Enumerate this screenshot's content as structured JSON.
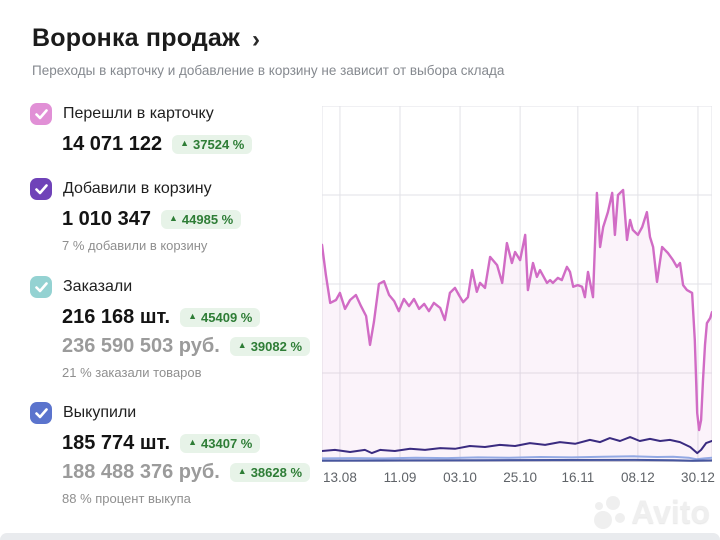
{
  "header": {
    "title": "Воронка продаж",
    "chevron": "›",
    "subtitle": "Переходы в карточку и добавление в корзину не зависит от выбора склада"
  },
  "metrics": [
    {
      "label": "Перешли в карточку",
      "checkbox_color": "#e190d6",
      "checked": true,
      "rows": [
        {
          "value": "14 071 122",
          "delta": "37524 %",
          "muted": false
        }
      ],
      "caption": null
    },
    {
      "label": "Добавили в корзину",
      "checkbox_color": "#6f42b8",
      "checked": true,
      "rows": [
        {
          "value": "1 010 347",
          "delta": "44985 %",
          "muted": false
        }
      ],
      "caption": "7 % добавили в корзину"
    },
    {
      "label": "Заказали",
      "checkbox_color": "#94d2d2",
      "checked": true,
      "rows": [
        {
          "value": "216 168 шт.",
          "delta": "45409 %",
          "muted": false
        },
        {
          "value": "236 590 503 руб.",
          "delta": "39082 %",
          "muted": true
        }
      ],
      "caption": "21 % заказали товаров"
    },
    {
      "label": "Выкупили",
      "checkbox_color": "#5b74cd",
      "checked": true,
      "rows": [
        {
          "value": "185 774 шт.",
          "delta": "43407 %",
          "muted": false
        },
        {
          "value": "188 488 376 руб.",
          "delta": "38628 %",
          "muted": true
        }
      ],
      "caption": "88 % процент выкупа"
    }
  ],
  "chart_data": {
    "type": "line",
    "grid": true,
    "x_axis": {
      "tick_labels": [
        "13.08",
        "11.09",
        "03.10",
        "25.10",
        "16.11",
        "08.12",
        "30.12"
      ],
      "tick_positions_pct": [
        4.6,
        20,
        35.4,
        50.8,
        65.6,
        81,
        96.4
      ]
    },
    "y_axis": {
      "visible": false,
      "note": "no y-axis tick labels shown; series values are percent of plot height above baseline"
    },
    "colors": {
      "grid": "#e2e2e7",
      "axis": "#c7cbd4"
    },
    "series": [
      {
        "name": "Перешли в карточку",
        "color": "#d16cc5",
        "width": 2.4,
        "fill": "rgba(210,108,197,0.08)",
        "points": [
          [
            0,
            61
          ],
          [
            1,
            52.5
          ],
          [
            2.1,
            44.7
          ],
          [
            3.6,
            45.5
          ],
          [
            4.6,
            47.5
          ],
          [
            5.9,
            43
          ],
          [
            7.2,
            45.5
          ],
          [
            8.7,
            46.9
          ],
          [
            10,
            43.8
          ],
          [
            11.3,
            41
          ],
          [
            12.3,
            32.9
          ],
          [
            13.3,
            39.3
          ],
          [
            14.6,
            50
          ],
          [
            15.9,
            50.8
          ],
          [
            17.2,
            46.9
          ],
          [
            18.5,
            45.2
          ],
          [
            19.7,
            42.4
          ],
          [
            21,
            45.8
          ],
          [
            22.3,
            43.8
          ],
          [
            23.6,
            45.8
          ],
          [
            24.9,
            43
          ],
          [
            26.2,
            44.4
          ],
          [
            27.4,
            42.4
          ],
          [
            28.7,
            44.7
          ],
          [
            30.3,
            43.3
          ],
          [
            31.5,
            39.9
          ],
          [
            32.8,
            47.5
          ],
          [
            34.1,
            48.9
          ],
          [
            35.1,
            46.9
          ],
          [
            36.2,
            44.9
          ],
          [
            37.4,
            46.3
          ],
          [
            38.5,
            53.9
          ],
          [
            39.7,
            47.8
          ],
          [
            40.5,
            50.3
          ],
          [
            41.8,
            48.9
          ],
          [
            43.1,
            57.6
          ],
          [
            44.9,
            55.3
          ],
          [
            46.2,
            50.3
          ],
          [
            47.4,
            61.5
          ],
          [
            48.7,
            55.9
          ],
          [
            49.5,
            59
          ],
          [
            50.8,
            56.7
          ],
          [
            52.1,
            63.8
          ],
          [
            52.8,
            48.3
          ],
          [
            54.1,
            55.9
          ],
          [
            55.1,
            52
          ],
          [
            55.9,
            53.9
          ],
          [
            57.7,
            50.3
          ],
          [
            58.5,
            51.1
          ],
          [
            59.2,
            50.3
          ],
          [
            60.5,
            51.7
          ],
          [
            61.5,
            51.1
          ],
          [
            62.8,
            54.8
          ],
          [
            63.6,
            53.4
          ],
          [
            64.4,
            49.2
          ],
          [
            65.6,
            49.7
          ],
          [
            66.7,
            49.2
          ],
          [
            67.4,
            46.3
          ],
          [
            68.2,
            53.4
          ],
          [
            69.5,
            46.3
          ],
          [
            70.5,
            75.6
          ],
          [
            71.3,
            60.4
          ],
          [
            72.1,
            66
          ],
          [
            73.3,
            70.2
          ],
          [
            74.4,
            75.6
          ],
          [
            75.1,
            63.8
          ],
          [
            75.9,
            75
          ],
          [
            77.2,
            76.4
          ],
          [
            78.2,
            62.4
          ],
          [
            79,
            68
          ],
          [
            79.7,
            65.2
          ],
          [
            81,
            63.8
          ],
          [
            82.1,
            66
          ],
          [
            83.3,
            70.2
          ],
          [
            84.1,
            63.2
          ],
          [
            84.9,
            60.4
          ],
          [
            85.9,
            50.6
          ],
          [
            87.2,
            60.4
          ],
          [
            87.9,
            59.6
          ],
          [
            88.7,
            58.7
          ],
          [
            90,
            56.7
          ],
          [
            91,
            54.8
          ],
          [
            91.8,
            55.9
          ],
          [
            92.6,
            49.7
          ],
          [
            93.6,
            48.3
          ],
          [
            94.9,
            47.5
          ],
          [
            95.6,
            34.3
          ],
          [
            96.2,
            13.8
          ],
          [
            96.7,
            9
          ],
          [
            97.2,
            11.8
          ],
          [
            97.7,
            23
          ],
          [
            98.2,
            32.9
          ],
          [
            98.7,
            39
          ],
          [
            99.5,
            40.4
          ],
          [
            100,
            42.1
          ]
        ]
      },
      {
        "name": "Добавили в корзину",
        "color": "#3a2b80",
        "width": 2,
        "fill": null,
        "points": [
          [
            0,
            3.1
          ],
          [
            3.3,
            3.4
          ],
          [
            7.2,
            2.8
          ],
          [
            11,
            3.4
          ],
          [
            12.8,
            2.5
          ],
          [
            14.9,
            3.4
          ],
          [
            18.7,
            3.1
          ],
          [
            22.6,
            3.7
          ],
          [
            26.4,
            3.4
          ],
          [
            30.3,
            3.9
          ],
          [
            34.1,
            3.7
          ],
          [
            37.9,
            4.5
          ],
          [
            41.8,
            4.2
          ],
          [
            45.6,
            4.8
          ],
          [
            49.5,
            4.5
          ],
          [
            53.3,
            5.3
          ],
          [
            57.2,
            4.8
          ],
          [
            61,
            5.6
          ],
          [
            64.9,
            5.1
          ],
          [
            68.7,
            6.2
          ],
          [
            71.3,
            5.6
          ],
          [
            73.8,
            6.7
          ],
          [
            76.4,
            5.9
          ],
          [
            79,
            7
          ],
          [
            81.5,
            5.9
          ],
          [
            84.1,
            6.5
          ],
          [
            86.7,
            5.9
          ],
          [
            89.2,
            6.2
          ],
          [
            91.8,
            5.6
          ],
          [
            94.4,
            4.2
          ],
          [
            96.2,
            2.5
          ],
          [
            97.2,
            3.4
          ],
          [
            98.5,
            5.3
          ],
          [
            100,
            5.9
          ]
        ]
      },
      {
        "name": "Заказали",
        "color": "#93a9e4",
        "width": 2,
        "fill": null,
        "points": [
          [
            0,
            1
          ],
          [
            8,
            1.1
          ],
          [
            16,
            1
          ],
          [
            24,
            1.2
          ],
          [
            32,
            1.1
          ],
          [
            40,
            1.3
          ],
          [
            48,
            1.2
          ],
          [
            56,
            1.4
          ],
          [
            64,
            1.3
          ],
          [
            72,
            1.5
          ],
          [
            80,
            1.6
          ],
          [
            86,
            1.4
          ],
          [
            90,
            1.5
          ],
          [
            94,
            1.2
          ],
          [
            96,
            0.8
          ],
          [
            98,
            1
          ],
          [
            100,
            1.2
          ]
        ]
      },
      {
        "name": "Выкупили",
        "color": "#46569f",
        "width": 2,
        "fill": null,
        "points": [
          [
            0,
            0.4
          ],
          [
            20,
            0.45
          ],
          [
            40,
            0.5
          ],
          [
            60,
            0.55
          ],
          [
            80,
            0.6
          ],
          [
            90,
            0.5
          ],
          [
            95,
            0.35
          ],
          [
            100,
            0.45
          ]
        ]
      }
    ]
  },
  "watermark": {
    "text": "Avito"
  }
}
